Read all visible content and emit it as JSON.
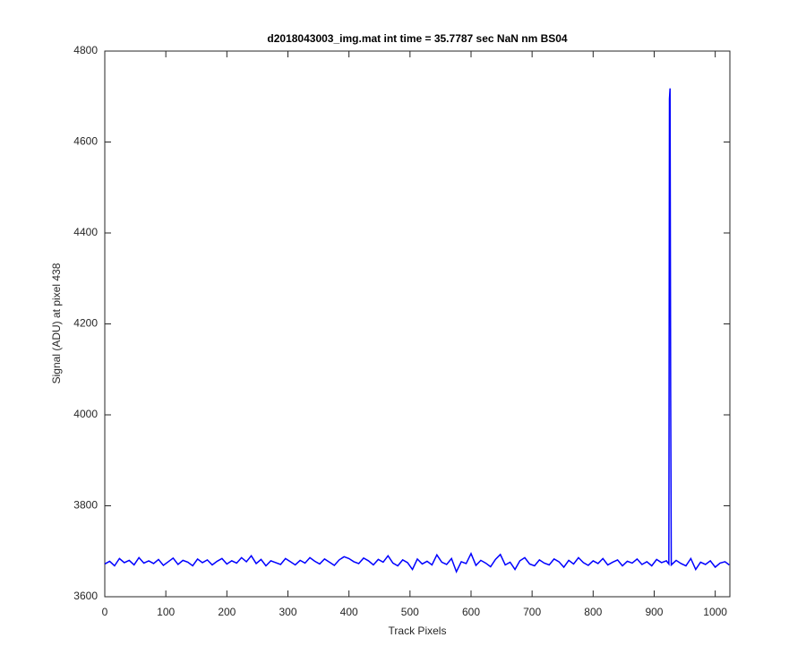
{
  "chart_data": {
    "type": "line",
    "title": "d2018043003_img.mat int time = 35.7787 sec  NaN nm BS04",
    "xlabel": "Track Pixels",
    "ylabel": "Signal (ADU) at pixel 438",
    "color": "#0000ff",
    "xlim": [
      0,
      1024
    ],
    "ylim": [
      3600,
      4800
    ],
    "xticks": [
      0,
      100,
      200,
      300,
      400,
      500,
      600,
      700,
      800,
      900,
      1000
    ],
    "yticks": [
      3600,
      3800,
      4000,
      4200,
      4400,
      4600,
      4800
    ],
    "grid": false,
    "x": [
      0,
      8,
      16,
      24,
      32,
      40,
      48,
      56,
      64,
      72,
      80,
      88,
      96,
      104,
      112,
      120,
      128,
      136,
      144,
      152,
      160,
      168,
      176,
      184,
      192,
      200,
      208,
      216,
      224,
      232,
      240,
      248,
      256,
      264,
      272,
      280,
      288,
      296,
      304,
      312,
      320,
      328,
      336,
      344,
      352,
      360,
      368,
      376,
      384,
      392,
      400,
      408,
      416,
      424,
      432,
      440,
      448,
      456,
      464,
      472,
      480,
      488,
      496,
      504,
      512,
      520,
      528,
      536,
      544,
      552,
      560,
      568,
      576,
      584,
      592,
      600,
      608,
      616,
      624,
      632,
      640,
      648,
      656,
      664,
      672,
      680,
      688,
      696,
      704,
      712,
      720,
      728,
      736,
      744,
      752,
      760,
      768,
      776,
      784,
      792,
      800,
      808,
      816,
      824,
      832,
      840,
      848,
      856,
      864,
      872,
      880,
      888,
      896,
      904,
      912,
      920,
      924,
      925,
      926,
      927,
      928,
      936,
      944,
      952,
      960,
      968,
      976,
      984,
      992,
      1000,
      1008,
      1016,
      1023
    ],
    "values": [
      3672,
      3678,
      3668,
      3684,
      3675,
      3680,
      3670,
      3686,
      3674,
      3679,
      3673,
      3682,
      3669,
      3677,
      3685,
      3671,
      3680,
      3676,
      3668,
      3683,
      3675,
      3681,
      3670,
      3678,
      3684,
      3672,
      3679,
      3674,
      3686,
      3677,
      3690,
      3673,
      3682,
      3668,
      3679,
      3675,
      3671,
      3684,
      3677,
      3670,
      3680,
      3674,
      3686,
      3678,
      3672,
      3683,
      3676,
      3669,
      3681,
      3688,
      3684,
      3677,
      3673,
      3685,
      3679,
      3670,
      3682,
      3676,
      3690,
      3674,
      3668,
      3681,
      3675,
      3660,
      3683,
      3672,
      3678,
      3670,
      3692,
      3676,
      3671,
      3684,
      3655,
      3677,
      3673,
      3695,
      3669,
      3680,
      3674,
      3666,
      3682,
      3693,
      3670,
      3676,
      3660,
      3679,
      3686,
      3672,
      3668,
      3681,
      3674,
      3670,
      3683,
      3677,
      3665,
      3680,
      3672,
      3686,
      3675,
      3669,
      3679,
      3673,
      3684,
      3670,
      3676,
      3681,
      3668,
      3678,
      3674,
      3683,
      3671,
      3677,
      3668,
      3682,
      3675,
      3679,
      3672,
      4695,
      4718,
      4050,
      3670,
      3680,
      3673,
      3668,
      3684,
      3660,
      3676,
      3671,
      3679,
      3665,
      3674,
      3677,
      3670
    ]
  }
}
